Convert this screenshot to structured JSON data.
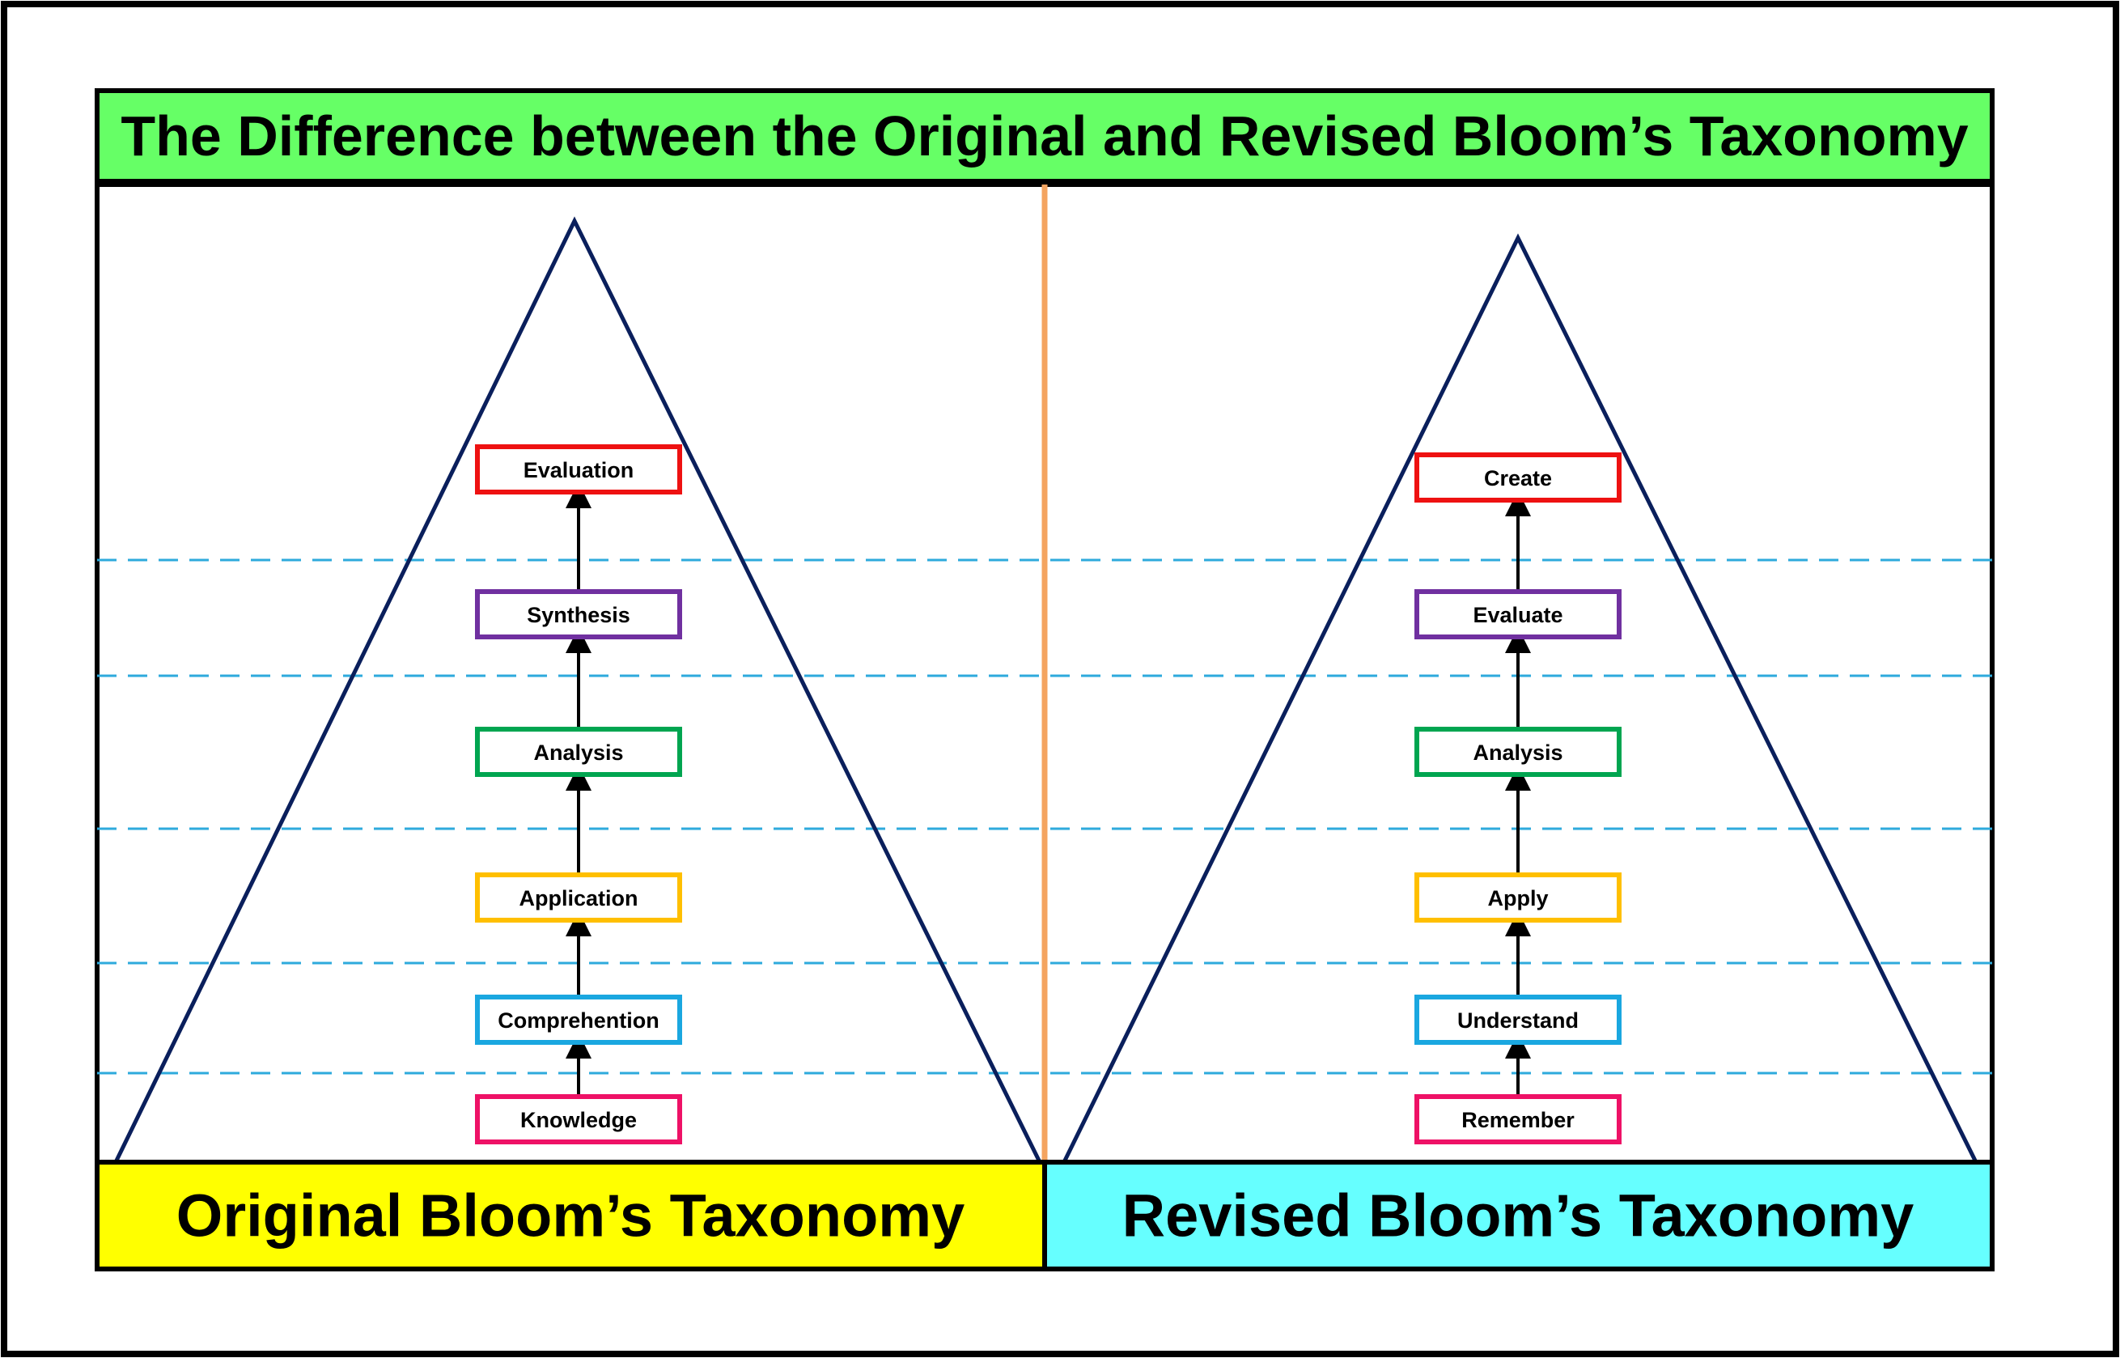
{
  "title": "The Difference between the Original and Revised Bloom’s Taxonomy",
  "colors": {
    "title_bg": "#66ff66",
    "original_footer_bg": "#ffff00",
    "revised_footer_bg": "#66ffff",
    "divider": "#f4a460",
    "triangle": "#0a1f5c",
    "dashed_line": "#2eaadc",
    "arrow": "#000000"
  },
  "original": {
    "footer_label": "Original Bloom’s Taxonomy",
    "levels": [
      {
        "label": "Knowledge",
        "color": "#ee1166"
      },
      {
        "label": "Comprehention",
        "color": "#1aa7e0"
      },
      {
        "label": "Application",
        "color": "#ffbf00"
      },
      {
        "label": "Analysis",
        "color": "#00a550"
      },
      {
        "label": "Synthesis",
        "color": "#7030a0"
      },
      {
        "label": "Evaluation",
        "color": "#ee1111"
      }
    ]
  },
  "revised": {
    "footer_label": "Revised Bloom’s Taxonomy",
    "levels": [
      {
        "label": "Remember",
        "color": "#ee1166"
      },
      {
        "label": "Understand",
        "color": "#1aa7e0"
      },
      {
        "label": "Apply",
        "color": "#ffbf00"
      },
      {
        "label": "Analysis",
        "color": "#00a550"
      },
      {
        "label": "Evaluate",
        "color": "#7030a0"
      },
      {
        "label": "Create",
        "color": "#ee1111"
      }
    ]
  }
}
